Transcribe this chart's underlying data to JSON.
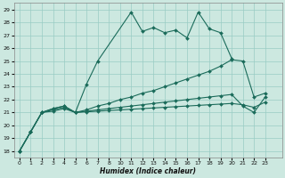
{
  "xlabel": "Humidex (Indice chaleur)",
  "bg_color": "#cce8e0",
  "grid_color": "#99ccc4",
  "line_color": "#1a6b5a",
  "xlim": [
    -0.5,
    23.5
  ],
  "ylim": [
    17.5,
    29.5
  ],
  "yticks": [
    18,
    19,
    20,
    21,
    22,
    23,
    24,
    25,
    26,
    27,
    28,
    29
  ],
  "xtick_labels": [
    "0",
    "1",
    "2",
    "3",
    "4",
    "5",
    "6",
    "7",
    "8",
    "10",
    "11",
    "12",
    "13",
    "14",
    "15",
    "16",
    "17",
    "18",
    "19",
    "20",
    "21",
    "22",
    "23"
  ],
  "xtick_pos": [
    0,
    1,
    2,
    3,
    4,
    5,
    6,
    7,
    8,
    9,
    10,
    11,
    12,
    13,
    14,
    15,
    16,
    17,
    18,
    19,
    20,
    21,
    22
  ],
  "series": [
    {
      "x": [
        0,
        1,
        2,
        3,
        4,
        5,
        6,
        7,
        10,
        11,
        12,
        13,
        14,
        15,
        16,
        17,
        18,
        19
      ],
      "y": [
        18.0,
        19.5,
        21.0,
        21.3,
        21.5,
        21.0,
        23.2,
        25.0,
        28.8,
        27.3,
        27.6,
        27.2,
        27.4,
        26.8,
        28.8,
        27.5,
        27.2,
        25.2
      ],
      "marker": true
    },
    {
      "x": [
        0,
        1,
        2,
        3,
        4,
        5,
        6,
        7,
        8,
        9,
        10,
        11,
        12,
        13,
        14,
        15,
        16,
        17,
        18,
        19,
        20,
        21,
        22
      ],
      "y": [
        18.0,
        19.5,
        21.0,
        21.3,
        21.5,
        21.0,
        21.2,
        21.5,
        21.7,
        22.0,
        22.2,
        22.5,
        22.7,
        23.0,
        23.3,
        23.6,
        23.9,
        24.2,
        24.6,
        25.1,
        25.0,
        22.2,
        22.5
      ],
      "marker": true
    },
    {
      "x": [
        0,
        1,
        2,
        3,
        4,
        5,
        6,
        7,
        8,
        9,
        10,
        11,
        12,
        13,
        14,
        15,
        16,
        17,
        18,
        19,
        20,
        21,
        22
      ],
      "y": [
        18.0,
        19.5,
        21.0,
        21.2,
        21.4,
        21.0,
        21.1,
        21.2,
        21.3,
        21.4,
        21.5,
        21.6,
        21.7,
        21.8,
        21.9,
        22.0,
        22.1,
        22.2,
        22.3,
        22.4,
        21.5,
        21.0,
        22.2
      ],
      "marker": true
    },
    {
      "x": [
        0,
        1,
        2,
        3,
        4,
        5,
        6,
        7,
        8,
        9,
        10,
        11,
        12,
        13,
        14,
        15,
        16,
        17,
        18,
        19,
        20,
        21,
        22
      ],
      "y": [
        18.0,
        19.5,
        21.0,
        21.1,
        21.3,
        21.0,
        21.05,
        21.1,
        21.15,
        21.2,
        21.25,
        21.3,
        21.35,
        21.4,
        21.45,
        21.5,
        21.55,
        21.6,
        21.65,
        21.7,
        21.6,
        21.4,
        21.8
      ],
      "marker": true
    }
  ]
}
